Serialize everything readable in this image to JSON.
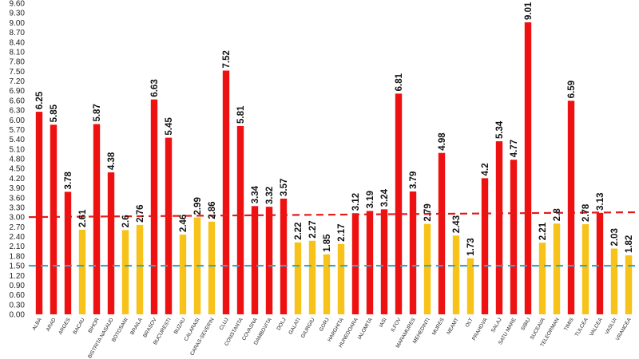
{
  "chart_data": {
    "type": "bar",
    "title": "",
    "xlabel": "",
    "ylabel": "",
    "ylim": [
      0,
      9.6
    ],
    "yticks": [
      "0.00",
      "0.30",
      "0.60",
      "0.90",
      "1.20",
      "1.50",
      "1.80",
      "2.10",
      "2.40",
      "2.70",
      "3.00",
      "3.30",
      "3.60",
      "3.90",
      "4.20",
      "4.50",
      "4.80",
      "5.10",
      "5.40",
      "5.70",
      "6.00",
      "6.30",
      "6.60",
      "6.90",
      "7.20",
      "7.50",
      "7.80",
      "8.10",
      "8.40",
      "8.70",
      "9.00",
      "9.30",
      "9.60"
    ],
    "grid": false,
    "legend": "none",
    "categories": [
      "ALBA",
      "ARAD",
      "ARGES",
      "BACAU",
      "BIHOR",
      "BISTRITA NASAUD",
      "BOTOSANI",
      "BRAILA",
      "BRASOV",
      "BUCURESTI",
      "BUZAU",
      "CALARASI",
      "CARAS-SEVERIN",
      "CLUJ",
      "CONSTANTA",
      "COVASNA",
      "DAMBOVITA",
      "DOLJ",
      "GALATI",
      "GIURGIU",
      "GORJ",
      "HARGHITA",
      "HUNEDOARA",
      "IALOMITA",
      "IASI",
      "ILFOV",
      "MARAMURES",
      "MEHEDINTI",
      "MURES",
      "NEAMT",
      "OLT",
      "PRAHOVA",
      "SALAJ",
      "SATU MARE",
      "SIBIU",
      "SUCEAVA",
      "TELEORMAN",
      "TIMIS",
      "TULCEA",
      "VALCEA",
      "VASLUI",
      "VRANCEA"
    ],
    "values": [
      6.25,
      5.85,
      3.78,
      2.61,
      5.87,
      4.38,
      2.6,
      2.76,
      6.63,
      5.45,
      2.46,
      2.99,
      2.86,
      7.52,
      5.81,
      3.34,
      3.32,
      3.57,
      2.22,
      2.27,
      1.85,
      2.17,
      3.12,
      3.19,
      3.24,
      6.81,
      3.79,
      2.79,
      4.98,
      2.43,
      1.73,
      4.2,
      5.34,
      4.77,
      9.01,
      2.21,
      2.8,
      6.59,
      2.78,
      3.13,
      2.03,
      1.82
    ],
    "value_labels": [
      "6.25",
      "5.85",
      "3.78",
      "2.61",
      "5.87",
      "4.38",
      "2.6",
      "2.76",
      "6.63",
      "5.45",
      "2.46",
      "2.99",
      "2.86",
      "7.52",
      "5.81",
      "3.34",
      "3.32",
      "3.57",
      "2.22",
      "2.27",
      "1.85",
      "2.17",
      "3.12",
      "3.19",
      "3.24",
      "6.81",
      "3.79",
      "2.79",
      "4.98",
      "2.43",
      "1.73",
      "4.2",
      "5.34",
      "4.77",
      "9.01",
      "2.21",
      "2.8",
      "6.59",
      "2.78",
      "3.13",
      "2.03",
      "1.82"
    ],
    "bar_colors": [
      "#ee1111",
      "#ee1111",
      "#ee1111",
      "#f7c21a",
      "#ee1111",
      "#ee1111",
      "#f7c21a",
      "#f7c21a",
      "#ee1111",
      "#ee1111",
      "#f7c21a",
      "#f7c21a",
      "#f7c21a",
      "#ee1111",
      "#ee1111",
      "#ee1111",
      "#ee1111",
      "#ee1111",
      "#f7c21a",
      "#f7c21a",
      "#f7c21a",
      "#f7c21a",
      "#ee1111",
      "#ee1111",
      "#ee1111",
      "#ee1111",
      "#ee1111",
      "#f7c21a",
      "#ee1111",
      "#f7c21a",
      "#f7c21a",
      "#ee1111",
      "#ee1111",
      "#ee1111",
      "#ee1111",
      "#f7c21a",
      "#f7c21a",
      "#ee1111",
      "#f7c21a",
      "#ee1111",
      "#f7c21a",
      "#f7c21a"
    ],
    "thresholds": [
      {
        "value": 3.0,
        "value_end": 3.15,
        "color": "#e21b1b",
        "style": "dashed"
      },
      {
        "value": 1.5,
        "color": "#2aa7d6",
        "style": "dashed"
      }
    ]
  }
}
